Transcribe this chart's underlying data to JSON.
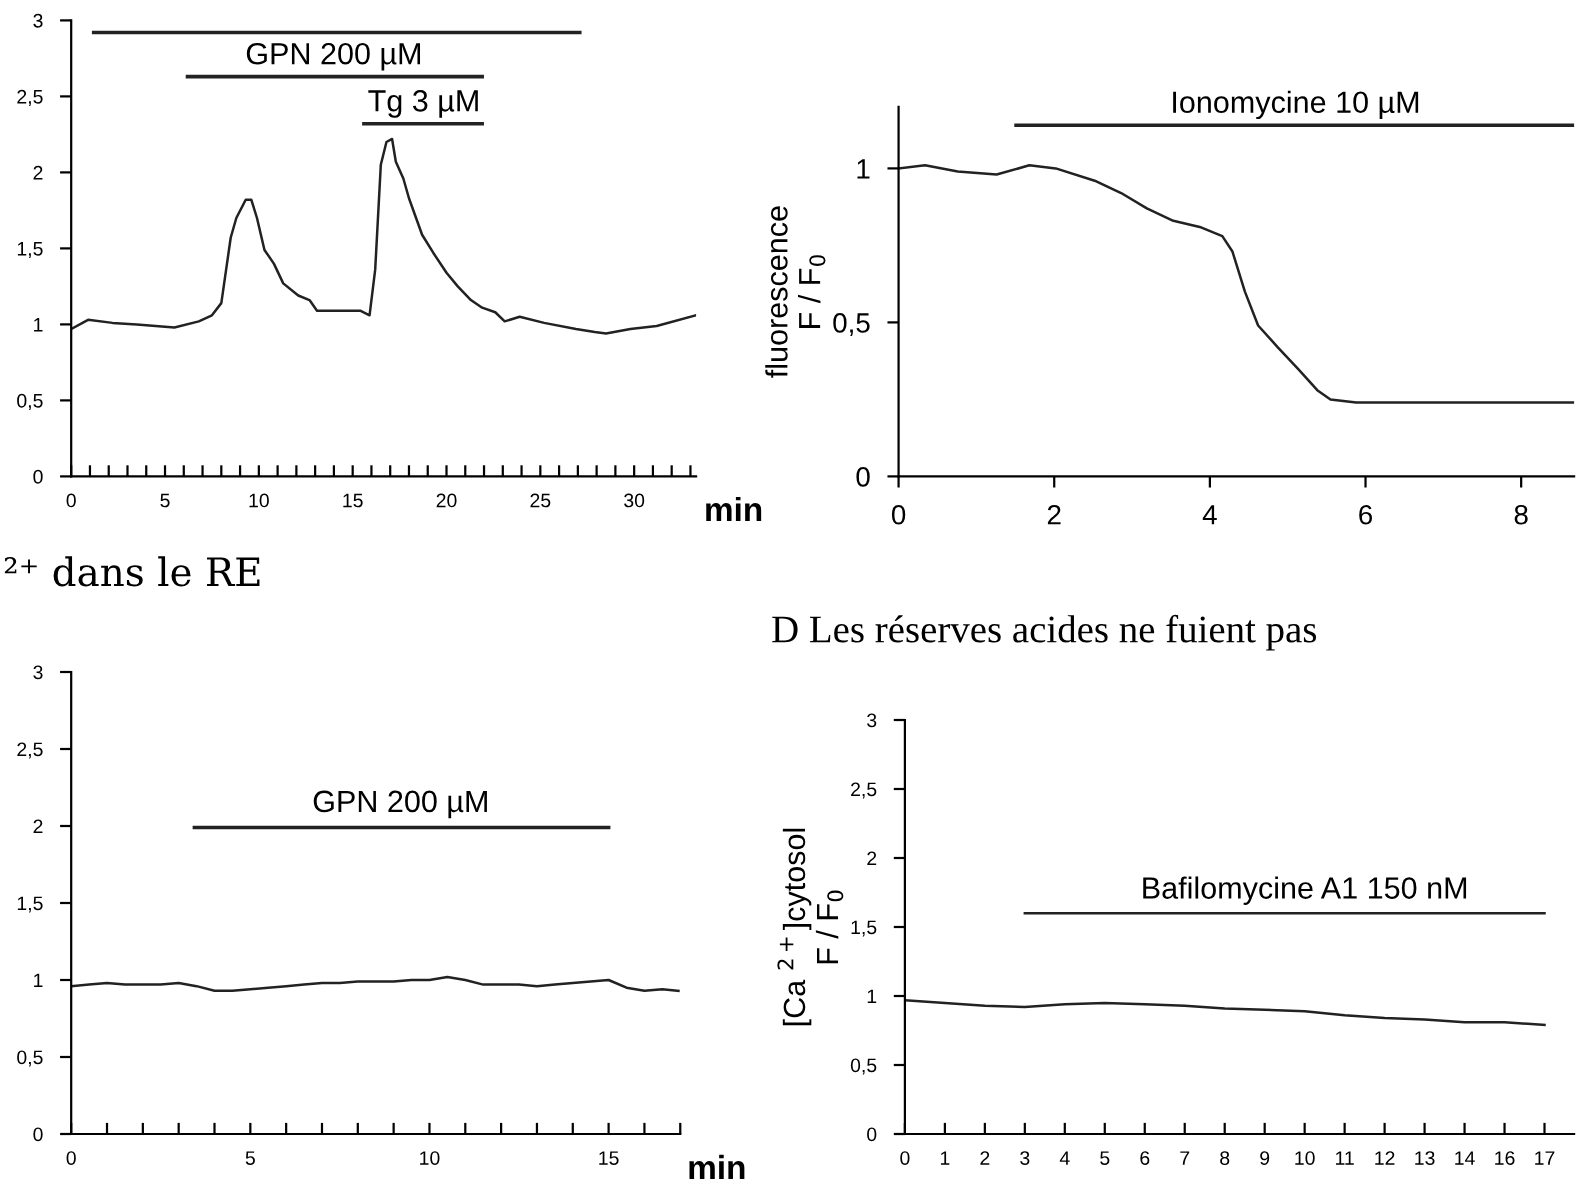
{
  "chart_data": [
    {
      "type": "line",
      "xlabel": "min",
      "x": [
        0,
        0.9,
        2.2,
        3.5,
        5.5,
        6.8,
        7.5,
        8.0,
        8.5,
        8.8,
        9.3,
        9.6,
        9.9,
        10.3,
        10.8,
        11.3,
        12.1,
        12.7,
        13.1,
        14.1,
        15.4,
        15.9,
        16.2,
        16.5,
        16.8,
        17.1,
        17.3,
        17.7,
        18.0,
        18.7,
        19.3,
        20.0,
        20.6,
        21.3,
        21.9,
        22.6,
        23.1,
        23.9,
        25.2,
        26.9,
        27.9,
        28.5,
        29.8,
        31.2,
        33.3
      ],
      "series": [
        {
          "color": "#222222",
          "values": [
            0.97,
            1.03,
            1.01,
            1.0,
            0.98,
            1.02,
            1.06,
            1.14,
            1.57,
            1.7,
            1.82,
            1.82,
            1.7,
            1.49,
            1.4,
            1.27,
            1.19,
            1.16,
            1.09,
            1.09,
            1.09,
            1.06,
            1.36,
            2.05,
            2.2,
            2.22,
            2.07,
            1.96,
            1.83,
            1.59,
            1.47,
            1.34,
            1.25,
            1.16,
            1.11,
            1.08,
            1.02,
            1.05,
            1.01,
            0.97,
            0.95,
            0.94,
            0.97,
            0.99,
            1.06
          ]
        },
        {
          "color": "#222222",
          "x": [
            1.2,
            27.1
          ],
          "values": [
            2.92,
            2.92
          ]
        },
        {
          "color": "#222222",
          "x": [
            6.2,
            21.9
          ],
          "values": [
            2.63,
            2.63
          ]
        },
        {
          "color": "#222222",
          "x": [
            15.6,
            21.9
          ],
          "values": [
            2.32,
            2.32
          ]
        }
      ],
      "xlim": [
        0,
        33.3
      ],
      "ylim": [
        0,
        3
      ],
      "xticks": [
        0,
        {
          "value": 1,
          "label": null
        },
        {
          "value": 2,
          "label": null
        },
        {
          "value": 3,
          "label": null
        },
        {
          "value": 4,
          "label": null
        },
        5,
        {
          "value": 6,
          "label": null
        },
        {
          "value": 7,
          "label": null
        },
        {
          "value": 8,
          "label": null
        },
        {
          "value": 9,
          "label": null
        },
        10,
        {
          "value": 11,
          "label": null
        },
        {
          "value": 12,
          "label": null
        },
        {
          "value": 13,
          "label": null
        },
        {
          "value": 14,
          "label": null
        },
        15,
        {
          "value": 16,
          "label": null
        },
        {
          "value": 17,
          "label": null
        },
        {
          "value": 18,
          "label": null
        },
        {
          "value": 19,
          "label": null
        },
        20,
        {
          "value": 21,
          "label": null
        },
        {
          "value": 22,
          "label": null
        },
        {
          "value": 23,
          "label": null
        },
        {
          "value": 24,
          "label": null
        },
        25,
        {
          "value": 26,
          "label": null
        },
        {
          "value": 27,
          "label": null
        },
        {
          "value": 28,
          "label": null
        },
        {
          "value": 29,
          "label": null
        },
        30,
        {
          "value": 31,
          "label": null
        },
        {
          "value": 32,
          "label": null
        },
        {
          "value": 33,
          "label": null
        }
      ],
      "yticks": [
        0,
        {
          "value": 0.5,
          "label": "0,5"
        },
        1,
        {
          "value": 1.5,
          "label": "1,5"
        },
        2,
        {
          "value": 2.5,
          "label": "2,5"
        },
        3
      ],
      "annotations": [
        {
          "text": "GPN 200 µM",
          "x": 14,
          "y": 2.67
        },
        {
          "text": "Tg 3 µM",
          "x": 18.8,
          "y": 2.36
        }
      ],
      "grid": false,
      "marker": "none",
      "line_style": "solid"
    },
    {
      "type": "line",
      "ylabel": "fluorescence\nF / F$_{0}$",
      "x": [
        0,
        0.34,
        0.76,
        1.26,
        1.68,
        2.02,
        2.52,
        2.86,
        3.19,
        3.53,
        3.87,
        4.16,
        4.29,
        4.45,
        4.62,
        4.87,
        5.13,
        5.38,
        5.55,
        5.88,
        7.06,
        7.9,
        8.68
      ],
      "series": [
        {
          "color": "#222222",
          "values": [
            1.0,
            1.01,
            0.99,
            0.98,
            1.01,
            1.0,
            0.96,
            0.92,
            0.87,
            0.83,
            0.81,
            0.78,
            0.73,
            0.6,
            0.49,
            0.42,
            0.35,
            0.28,
            0.25,
            0.24,
            0.24,
            0.24,
            0.24
          ]
        },
        {
          "color": "#222222",
          "x": [
            1.51,
            8.68
          ],
          "values": [
            1.14,
            1.14
          ]
        }
      ],
      "xlim": [
        0,
        8.68
      ],
      "ylim": [
        0,
        1.2
      ],
      "xticks": [
        0,
        2,
        4,
        6,
        8
      ],
      "yticks": [
        0,
        {
          "value": 0.5,
          "label": "0,5"
        },
        1
      ],
      "annotations": [
        {
          "text": "Ionomycine 10 µM",
          "x": 5.1,
          "y": 1.16
        }
      ],
      "grid": false,
      "marker": "none",
      "line_style": "solid"
    },
    {
      "type": "line",
      "title": "²⁺ dans le RE",
      "xlabel": "min",
      "x": [
        0,
        0.5,
        1,
        1.5,
        2,
        2.5,
        3,
        3.5,
        4,
        4.5,
        5,
        5.5,
        6,
        6.5,
        7,
        7.5,
        8,
        8.5,
        9,
        9.5,
        10,
        10.5,
        11,
        11.5,
        12,
        12.5,
        13,
        13.5,
        14,
        14.5,
        15,
        15.5,
        16,
        16.5,
        16.95
      ],
      "series": [
        {
          "color": "#222222",
          "values": [
            0.96,
            0.97,
            0.98,
            0.97,
            0.97,
            0.97,
            0.98,
            0.96,
            0.93,
            0.93,
            0.94,
            0.95,
            0.96,
            0.97,
            0.98,
            0.98,
            0.99,
            0.99,
            0.99,
            1.0,
            1.0,
            1.02,
            1.0,
            0.97,
            0.97,
            0.97,
            0.96,
            0.97,
            0.98,
            0.99,
            1.0,
            0.95,
            0.93,
            0.94,
            0.93
          ]
        },
        {
          "color": "#222222",
          "x": [
            3.44,
            15.0
          ],
          "values": [
            1.99,
            1.99
          ]
        }
      ],
      "xlim": [
        0,
        17
      ],
      "ylim": [
        0,
        3
      ],
      "xticks": [
        0,
        {
          "value": 1,
          "label": null
        },
        {
          "value": 2,
          "label": null
        },
        {
          "value": 3,
          "label": null
        },
        {
          "value": 4,
          "label": null
        },
        5,
        {
          "value": 6,
          "label": null
        },
        {
          "value": 7,
          "label": null
        },
        {
          "value": 8,
          "label": null
        },
        {
          "value": 9,
          "label": null
        },
        10,
        {
          "value": 11,
          "label": null
        },
        {
          "value": 12,
          "label": null
        },
        {
          "value": 13,
          "label": null
        },
        {
          "value": 14,
          "label": null
        },
        15,
        {
          "value": 16,
          "label": null
        },
        {
          "value": 17,
          "label": null
        }
      ],
      "yticks": [
        0,
        {
          "value": 0.5,
          "label": "0,5"
        },
        1,
        {
          "value": 1.5,
          "label": "1,5"
        },
        2,
        {
          "value": 2.5,
          "label": "2,5"
        },
        3
      ],
      "annotations": [
        {
          "text": "GPN 200 µM",
          "x": 9.2,
          "y": 2.05
        }
      ],
      "grid": false,
      "marker": "none",
      "line_style": "solid"
    },
    {
      "type": "line",
      "title": "D Les réserves acides ne fuient pas",
      "ylabel": "[Ca $^{2+}$]cytosol\nF / F$_{0}$",
      "categories": [
        "0",
        "1",
        "2",
        "3",
        "4",
        "5",
        "6",
        "7",
        "8",
        "9",
        "10",
        "11",
        "12",
        "13",
        "14",
        "16",
        "17"
      ],
      "series": [
        {
          "color": "#222222",
          "values": [
            0.97,
            0.95,
            0.93,
            0.92,
            0.94,
            0.95,
            0.94,
            0.93,
            0.91,
            0.9,
            0.89,
            0.86,
            0.84,
            0.83,
            0.81,
            0.81,
            0.79
          ]
        },
        {
          "color": "#222222",
          "values": [
            null,
            null,
            null,
            1.6,
            1.6,
            1.6,
            1.6,
            1.6,
            1.6,
            1.6,
            1.6,
            1.6,
            1.6,
            1.6,
            1.6,
            1.6,
            1.6
          ]
        }
      ],
      "ylim": [
        0,
        3
      ],
      "yticks": [
        0,
        {
          "value": 0.5,
          "label": "0,5"
        },
        1,
        {
          "value": 1.5,
          "label": "1,5"
        },
        2,
        {
          "value": 2.5,
          "label": "2,5"
        },
        3
      ],
      "annotations": [
        {
          "text": "Bafilomycine A1 150 nM",
          "x": "10",
          "y": 1.66
        }
      ],
      "grid": false,
      "marker": "none",
      "line_style": "solid"
    }
  ]
}
